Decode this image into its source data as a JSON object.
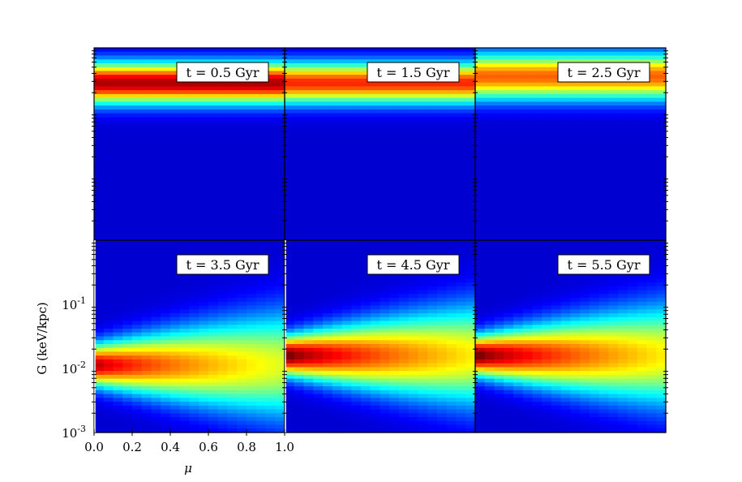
{
  "chart_data": {
    "type": "heatmap",
    "layout": "2x3 grid of panels sharing axes",
    "colormap": "jet",
    "x_axis": {
      "label": "μ",
      "range": [
        0.0,
        1.0
      ],
      "ticks": [
        "0.0",
        "0.2",
        "0.4",
        "0.6",
        "0.8",
        "1.0"
      ]
    },
    "y_axis": {
      "label": "G (keV/kpc)",
      "scale": "log",
      "range": [
        0.001,
        1.0
      ],
      "ticks": [
        {
          "base": "10",
          "exp": "-3",
          "value": 0.001
        },
        {
          "base": "10",
          "exp": "-2",
          "value": 0.01
        },
        {
          "base": "10",
          "exp": "-1",
          "value": 0.1
        }
      ]
    },
    "panels": [
      {
        "label": "t = 0.5 Gyr",
        "row": 0,
        "col": 0,
        "peak_logG": -0.55,
        "spread": 0.22,
        "peak_level": 0.88,
        "shape": "band"
      },
      {
        "label": "t = 1.5 Gyr",
        "row": 0,
        "col": 1,
        "peak_logG": -0.55,
        "spread": 0.22,
        "peak_level": 0.76,
        "shape": "band"
      },
      {
        "label": "t = 2.5 Gyr",
        "row": 0,
        "col": 2,
        "peak_logG": -0.45,
        "spread": 0.25,
        "peak_level": 0.7,
        "shape": "band"
      },
      {
        "label": "t = 3.5 Gyr",
        "row": 1,
        "col": 0,
        "peak_logG": -1.95,
        "spread": 0.4,
        "peak_level": 0.88,
        "shape": "wedge"
      },
      {
        "label": "t = 4.5 Gyr",
        "row": 1,
        "col": 1,
        "peak_logG": -1.8,
        "spread": 0.38,
        "peak_level": 0.96,
        "shape": "wedge"
      },
      {
        "label": "t = 5.5 Gyr",
        "row": 1,
        "col": 2,
        "peak_logG": -1.8,
        "spread": 0.38,
        "peak_level": 0.96,
        "shape": "wedge"
      }
    ],
    "grid": false,
    "legend": "none"
  }
}
